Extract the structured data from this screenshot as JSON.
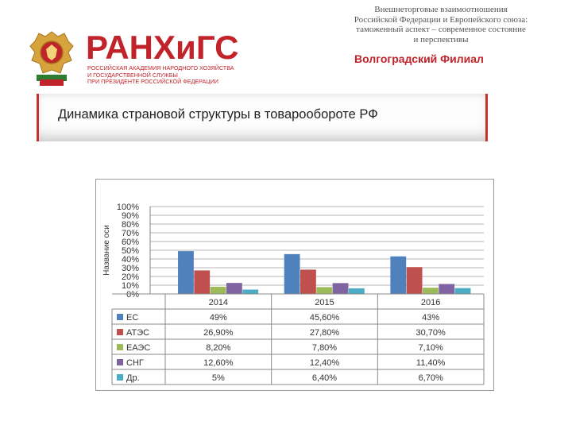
{
  "header": {
    "brand": "РАНХиГС",
    "brand_sub": [
      "Российская академия народного хозяйства",
      "и государственной службы",
      "при Президенте Российской Федерации"
    ],
    "title_lines": [
      "Внешнеторговые взаимоотношения",
      "Российской Федерации и Европейского союза:",
      "таможенный аспект – современное состояние",
      "и перспективы"
    ],
    "branch": "Волгоградский Филиал"
  },
  "slide_title": "Динамика страновой структуры в товарообороте РФ",
  "colors": {
    "brand_red": "#c0242a"
  },
  "chart_data": {
    "type": "bar",
    "categories": [
      "2014",
      "2015",
      "2016"
    ],
    "ylabel": "Название оси",
    "ylim": [
      0,
      100
    ],
    "yticks": [
      "0%",
      "10%",
      "20%",
      "30%",
      "40%",
      "50%",
      "60%",
      "70%",
      "80%",
      "90%",
      "100%"
    ],
    "series": [
      {
        "name": "ЕС",
        "color": "#4f81bd",
        "values": [
          49,
          45.6,
          43
        ],
        "labels": [
          "49%",
          "45,60%",
          "43%"
        ]
      },
      {
        "name": "АТЭС",
        "color": "#c0504d",
        "values": [
          26.9,
          27.8,
          30.7
        ],
        "labels": [
          "26,90%",
          "27,80%",
          "30,70%"
        ]
      },
      {
        "name": "ЕАЭС",
        "color": "#9bbb59",
        "values": [
          8.2,
          7.8,
          7.1
        ],
        "labels": [
          "8,20%",
          "7,80%",
          "7,10%"
        ]
      },
      {
        "name": "СНГ",
        "color": "#8064a2",
        "values": [
          12.6,
          12.4,
          11.4
        ],
        "labels": [
          "12,60%",
          "12,40%",
          "11,40%"
        ]
      },
      {
        "name": "Др.",
        "color": "#4bacc6",
        "values": [
          5,
          6.4,
          6.7
        ],
        "labels": [
          "5%",
          "6,40%",
          "6,70%"
        ]
      }
    ],
    "grid": true
  }
}
